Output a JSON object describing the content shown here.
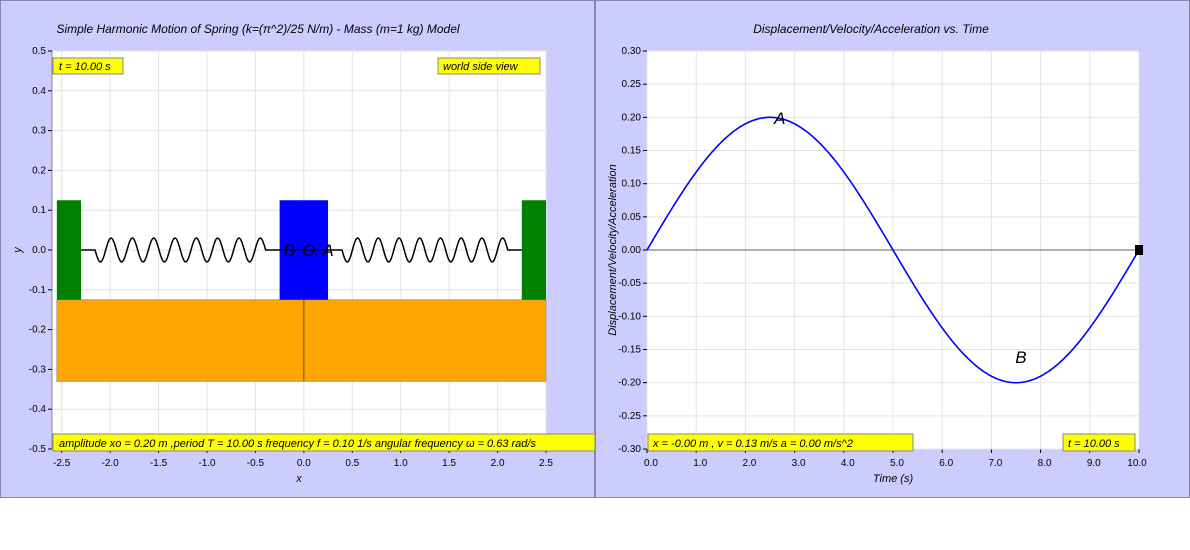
{
  "left": {
    "title": "Simple Harmonic Motion of Spring (k=(π^2)/25 N/m) - Mass (m=1 kg) Model",
    "time_box": "t = 10.00 s",
    "view_box": "world side view",
    "info_box": "amplitude xo = 0.20 m ,period T = 10.00 s frequency f = 0.10 1/s angular frequency ω = 0.63 rad/s",
    "mass_labels": {
      "b": "B",
      "o": "O",
      "a": "A"
    },
    "colors": {
      "wall": "#008000",
      "mass": "#0000ff",
      "floor": "#ffa500",
      "spring": "#000000",
      "info_bg": "#ffff00"
    },
    "chart_data": {
      "type": "scatter",
      "title": "Simple Harmonic Motion of Spring (k=(π^2)/25 N/m) - Mass (m=1 kg) Model",
      "xlabel": "x",
      "ylabel": "y",
      "xlim": [
        -2.6,
        2.5
      ],
      "ylim": [
        -0.5,
        0.5
      ],
      "xticks": [
        "-2.5",
        "-2.0",
        "-1.5",
        "-1.0",
        "-0.5",
        "0.0",
        "0.5",
        "1.0",
        "1.5",
        "2.0",
        "2.5"
      ],
      "xtick_values": [
        -2.5,
        -2.0,
        -1.5,
        -1.0,
        -0.5,
        0.0,
        0.5,
        1.0,
        1.5,
        2.0,
        2.5
      ],
      "yticks": [
        "-0.5",
        "-0.4",
        "-0.3",
        "-0.2",
        "-0.1",
        "0.0",
        "0.1",
        "0.2",
        "0.3",
        "0.4",
        "0.5"
      ],
      "ytick_values": [
        -0.5,
        -0.4,
        -0.3,
        -0.2,
        -0.1,
        0.0,
        0.1,
        0.2,
        0.3,
        0.4,
        0.5
      ],
      "grid": true,
      "objects": {
        "left_wall": {
          "x": [
            -2.55,
            -2.3
          ],
          "y": [
            -0.125,
            0.125
          ]
        },
        "right_wall": {
          "x": [
            2.25,
            2.5
          ],
          "y": [
            -0.125,
            0.125
          ]
        },
        "mass": {
          "x": [
            -0.25,
            0.25
          ],
          "y": [
            -0.125,
            0.125
          ]
        },
        "floor": {
          "x": [
            -2.55,
            2.5
          ],
          "y": [
            -0.33,
            -0.125
          ]
        },
        "floor_divider_x": 0.0,
        "spring_left": {
          "x": [
            -2.3,
            -0.25
          ],
          "coils": 8,
          "amplitude": 0.03
        },
        "spring_right": {
          "x": [
            0.25,
            2.25
          ],
          "coils": 8,
          "amplitude": 0.03
        },
        "marker_positions": {
          "B": -0.15,
          "O": 0.05,
          "A": 0.25
        }
      }
    }
  },
  "right": {
    "title": "Displacement/Velocity/Acceleration vs. Time",
    "time_box": "t = 10.00 s",
    "readout_box": "x = -0.00 m , v = 0.13 m/s a = 0.00 m/s^2",
    "colors": {
      "curve": "#0000ff",
      "axis": "#808080",
      "info_bg": "#ffff00"
    },
    "chart_data": {
      "type": "line",
      "title": "Displacement/Velocity/Acceleration vs. Time",
      "xlabel": "Time (s)",
      "ylabel": "Displacement/Velocity/Acceleration",
      "xlim": [
        0,
        10
      ],
      "ylim": [
        -0.3,
        0.3
      ],
      "xticks": [
        "0.0",
        "1.0",
        "2.0",
        "3.0",
        "4.0",
        "5.0",
        "6.0",
        "7.0",
        "8.0",
        "9.0",
        "10.0"
      ],
      "xtick_values": [
        0,
        1,
        2,
        3,
        4,
        5,
        6,
        7,
        8,
        9,
        10
      ],
      "yticks": [
        "-0.30",
        "-0.25",
        "-0.20",
        "-0.15",
        "-0.10",
        "-0.05",
        "0.00",
        "0.05",
        "0.10",
        "0.15",
        "0.20",
        "0.25",
        "0.30"
      ],
      "ytick_values": [
        -0.3,
        -0.25,
        -0.2,
        -0.15,
        -0.1,
        -0.05,
        0.0,
        0.05,
        0.1,
        0.15,
        0.2,
        0.25,
        0.3
      ],
      "grid": true,
      "series": [
        {
          "x": [
            0,
            0.5,
            1,
            1.5,
            2,
            2.5,
            3,
            3.5,
            4,
            4.5,
            5,
            5.5,
            6,
            6.5,
            7,
            7.5,
            8,
            8.5,
            9,
            9.5,
            10
          ],
          "values": [
            0,
            0.0618,
            0.1176,
            0.1618,
            0.1902,
            0.2,
            0.1902,
            0.1618,
            0.1176,
            0.0618,
            0,
            -0.0618,
            -0.1176,
            -0.1618,
            -0.1902,
            -0.2,
            -0.1902,
            -0.1618,
            -0.1176,
            -0.0618,
            0
          ]
        }
      ],
      "annotations": [
        {
          "text": "A",
          "x": 2.7,
          "y": 0.19
        },
        {
          "text": "B",
          "x": 7.6,
          "y": -0.17
        }
      ]
    }
  }
}
